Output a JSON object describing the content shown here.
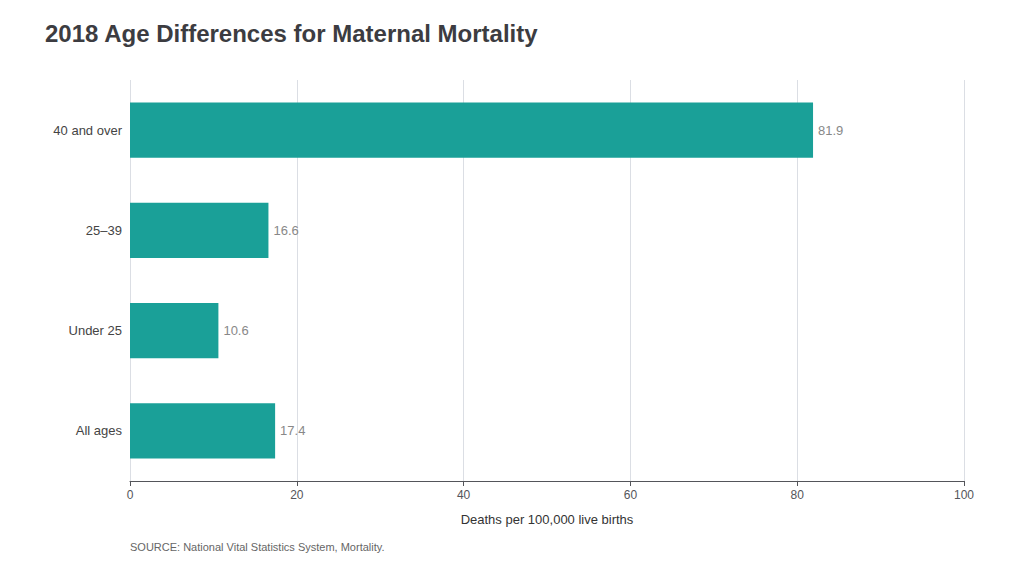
{
  "chart_data": {
    "type": "bar",
    "orientation": "horizontal",
    "title": "2018 Age Differences for Maternal Mortality",
    "categories": [
      "All ages",
      "Under 25",
      "25–39",
      "40 and over"
    ],
    "values": [
      17.4,
      10.6,
      16.6,
      81.9
    ],
    "color": "#1aa098",
    "xlabel": "Deaths per 100,000 live births",
    "xlim": [
      0,
      100
    ],
    "xticks": [
      0,
      20,
      40,
      60,
      80,
      100
    ],
    "grid": true,
    "data_labels": true,
    "annotation": "SOURCE: National Vital Statistics System, Mortality."
  }
}
